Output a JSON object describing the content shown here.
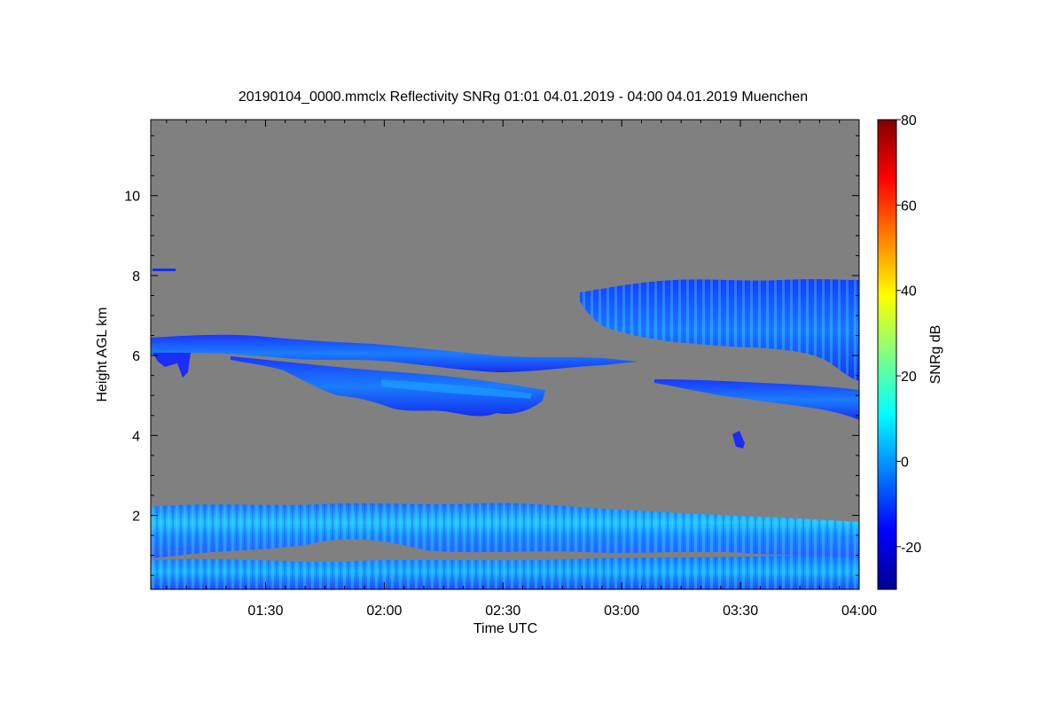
{
  "chart_data": {
    "type": "heatmap",
    "title": "20190104_0000.mmclx Reflectivity SNRg   01:01 04.01.2019 - 04:00 04.01.2019 Muenchen",
    "xlabel": "Time UTC",
    "ylabel": "Height AGL km",
    "xlim": [
      "01:01",
      "04:00"
    ],
    "ylim": [
      0.15,
      11.9
    ],
    "x_ticks": [
      "01:30",
      "02:00",
      "02:30",
      "03:00",
      "03:30",
      "04:00"
    ],
    "y_ticks": [
      "2",
      "4",
      "6",
      "8",
      "10"
    ],
    "background_color": "#808080",
    "colorbar": {
      "label": "SNRg dB",
      "range": [
        -30,
        80
      ],
      "ticks": [
        "-20",
        "0",
        "20",
        "40",
        "60",
        "80"
      ],
      "colormap": [
        "#00008f",
        "#0000ff",
        "#0080ff",
        "#00ffff",
        "#80ff80",
        "#ffff00",
        "#ff8000",
        "#ff0000",
        "#800000"
      ]
    },
    "features": [
      {
        "name": "boundary layer echo (upper)",
        "time": [
          "01:01",
          "04:00"
        ],
        "height_km": [
          1.0,
          2.35
        ],
        "snr_db": [
          -5,
          10
        ]
      },
      {
        "name": "near-surface echo",
        "time": [
          "01:01",
          "04:00"
        ],
        "height_km": [
          0.15,
          0.9
        ],
        "snr_db": [
          -10,
          8
        ]
      },
      {
        "name": "mid-level cloud layer 1",
        "time": [
          "01:01",
          "02:55"
        ],
        "height_km": [
          5.8,
          6.6
        ],
        "snr_db": [
          -20,
          5
        ]
      },
      {
        "name": "mid-level cloud layer 2",
        "time": [
          "01:35",
          "02:45"
        ],
        "height_km": [
          4.5,
          5.8
        ],
        "snr_db": [
          -20,
          5
        ]
      },
      {
        "name": "upper cloud",
        "time": [
          "02:52",
          "04:00"
        ],
        "height_km": [
          6.0,
          8.0
        ],
        "snr_db": [
          -18,
          5
        ]
      },
      {
        "name": "thin layer",
        "time": [
          "03:10",
          "04:00"
        ],
        "height_km": [
          4.5,
          5.5
        ],
        "snr_db": [
          -20,
          0
        ]
      }
    ]
  }
}
